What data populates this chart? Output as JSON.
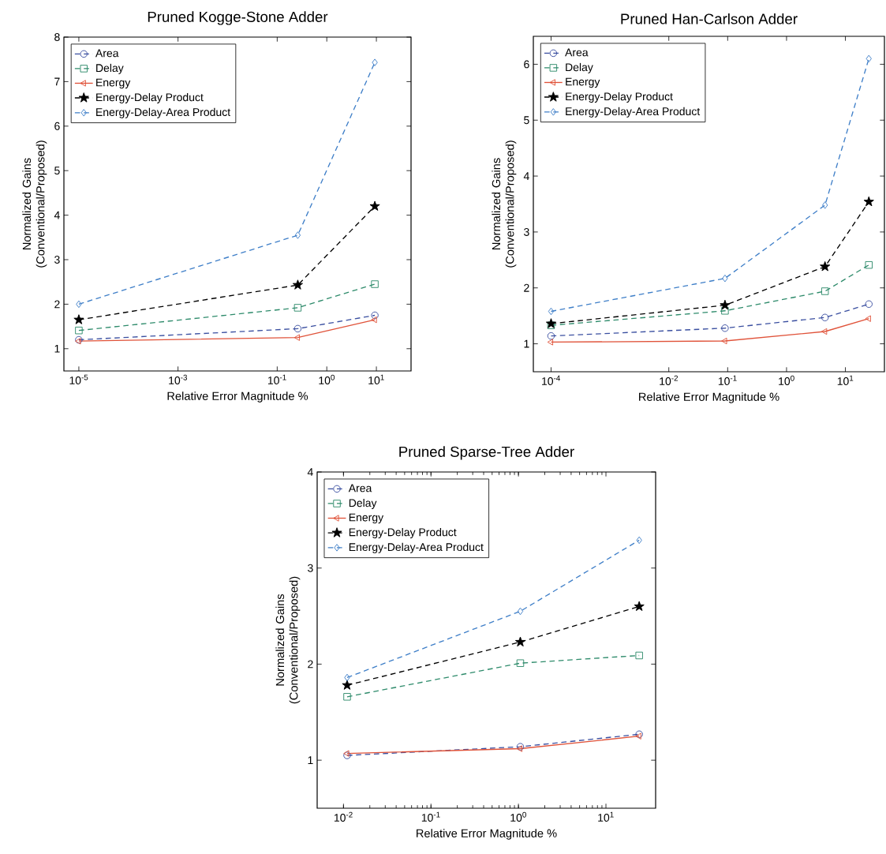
{
  "chart_data": [
    {
      "type": "line",
      "title": "Pruned Kogge-Stone Adder",
      "xlabel": "Relative Error Magnitude %",
      "ylabel": "Normalized Gains (Conventional/Proposed)",
      "log": "x",
      "legend": "top left",
      "x": [
        1e-05,
        0.26,
        9.3
      ],
      "xlim": [
        5e-06,
        50
      ],
      "ylim": [
        0.5,
        8
      ],
      "xticks": [
        {
          "value": 1e-05,
          "label": "10$^{-5}$"
        },
        {
          "value": 0.001,
          "label": "10$^{-3}$"
        },
        {
          "value": 0.1,
          "label": "10$^{-1}$"
        },
        {
          "value": 1,
          "label": "10$^{0}$"
        },
        {
          "value": 10,
          "label": "10$^{1}$"
        }
      ],
      "yticks": [
        1,
        2,
        3,
        4,
        5,
        6,
        7,
        8
      ],
      "series": [
        {
          "name": "Area",
          "color": "#3a4fa0",
          "marker": "circle",
          "line_style": "dashed",
          "values": [
            1.2,
            1.45,
            1.75
          ]
        },
        {
          "name": "Delay",
          "color": "#2e8b6b",
          "marker": "square",
          "line_style": "dashed",
          "values": [
            1.41,
            1.92,
            2.45
          ]
        },
        {
          "name": "Energy",
          "color": "#e0533a",
          "marker": "triangle",
          "line_style": "solid",
          "values": [
            1.17,
            1.25,
            1.65
          ]
        },
        {
          "name": "Energy-Delay Product",
          "color": "#000000",
          "marker": "star",
          "line_style": "dashed",
          "values": [
            1.65,
            2.43,
            4.2
          ]
        },
        {
          "name": "Energy-Delay-Area Product",
          "color": "#3f7fc8",
          "marker": "diamond",
          "line_style": "dashed",
          "values": [
            2.0,
            3.55,
            7.43
          ]
        }
      ]
    },
    {
      "type": "line",
      "title": "Pruned Han-Carlson Adder",
      "xlabel": "Relative Error Magnitude %",
      "ylabel": "Normalized Gains (Conventional/Proposed)",
      "log": "x",
      "legend": "top left",
      "x": [
        0.0001,
        0.09,
        4.5,
        25
      ],
      "xlim": [
        5e-05,
        46
      ],
      "ylim": [
        0.5,
        6.5
      ],
      "xticks": [
        {
          "value": 0.0001,
          "label": "10$^{-4}$"
        },
        {
          "value": 0.01,
          "label": "10$^{-2}$"
        },
        {
          "value": 0.1,
          "label": "10$^{-1}$"
        },
        {
          "value": 1,
          "label": "10$^{0}$"
        },
        {
          "value": 10,
          "label": "10$^{1}$"
        }
      ],
      "yticks": [
        1,
        2,
        3,
        4,
        5,
        6
      ],
      "series": [
        {
          "name": "Area",
          "color": "#3a4fa0",
          "marker": "circle",
          "line_style": "dashed",
          "values": [
            1.14,
            1.28,
            1.47,
            1.71
          ]
        },
        {
          "name": "Delay",
          "color": "#2e8b6b",
          "marker": "square",
          "line_style": "dashed",
          "values": [
            1.33,
            1.59,
            1.94,
            2.41
          ]
        },
        {
          "name": "Energy",
          "color": "#e0533a",
          "marker": "triangle",
          "line_style": "solid",
          "values": [
            1.03,
            1.05,
            1.22,
            1.45
          ]
        },
        {
          "name": "Energy-Delay Product",
          "color": "#000000",
          "marker": "star",
          "line_style": "dashed",
          "values": [
            1.36,
            1.69,
            2.38,
            3.54
          ]
        },
        {
          "name": "Energy-Delay-Area Product",
          "color": "#3f7fc8",
          "marker": "diamond",
          "line_style": "dashed",
          "values": [
            1.58,
            2.17,
            3.48,
            6.1
          ]
        }
      ]
    },
    {
      "type": "line",
      "title": "Pruned Sparse-Tree Adder",
      "xlabel": "Relative Error Magnitude %",
      "ylabel": "Normalized Gains (Conventional/Proposed)",
      "log": "x",
      "legend": "top left",
      "x": [
        0.011,
        1.05,
        24
      ],
      "xlim": [
        0.005,
        37
      ],
      "ylim": [
        0.5,
        4
      ],
      "xticks": [
        {
          "value": 0.01,
          "label": "10$^{-2}$"
        },
        {
          "value": 0.1,
          "label": "10$^{-1}$"
        },
        {
          "value": 1,
          "label": "10$^{0}$"
        },
        {
          "value": 10,
          "label": "10$^{1}$"
        }
      ],
      "yticks": [
        1,
        2,
        3,
        4
      ],
      "series": [
        {
          "name": "Area",
          "color": "#3a4fa0",
          "marker": "circle",
          "line_style": "dashed",
          "values": [
            1.05,
            1.14,
            1.27
          ]
        },
        {
          "name": "Delay",
          "color": "#2e8b6b",
          "marker": "square",
          "line_style": "dashed",
          "values": [
            1.66,
            2.01,
            2.09
          ]
        },
        {
          "name": "Energy",
          "color": "#e0533a",
          "marker": "triangle",
          "line_style": "solid",
          "values": [
            1.07,
            1.12,
            1.25
          ]
        },
        {
          "name": "Energy-Delay Product",
          "color": "#000000",
          "marker": "star",
          "line_style": "dashed",
          "values": [
            1.78,
            2.23,
            2.6
          ]
        },
        {
          "name": "Energy-Delay-Area Product",
          "color": "#3f7fc8",
          "marker": "diamond",
          "line_style": "dashed",
          "values": [
            1.86,
            2.55,
            3.29
          ]
        }
      ]
    }
  ]
}
